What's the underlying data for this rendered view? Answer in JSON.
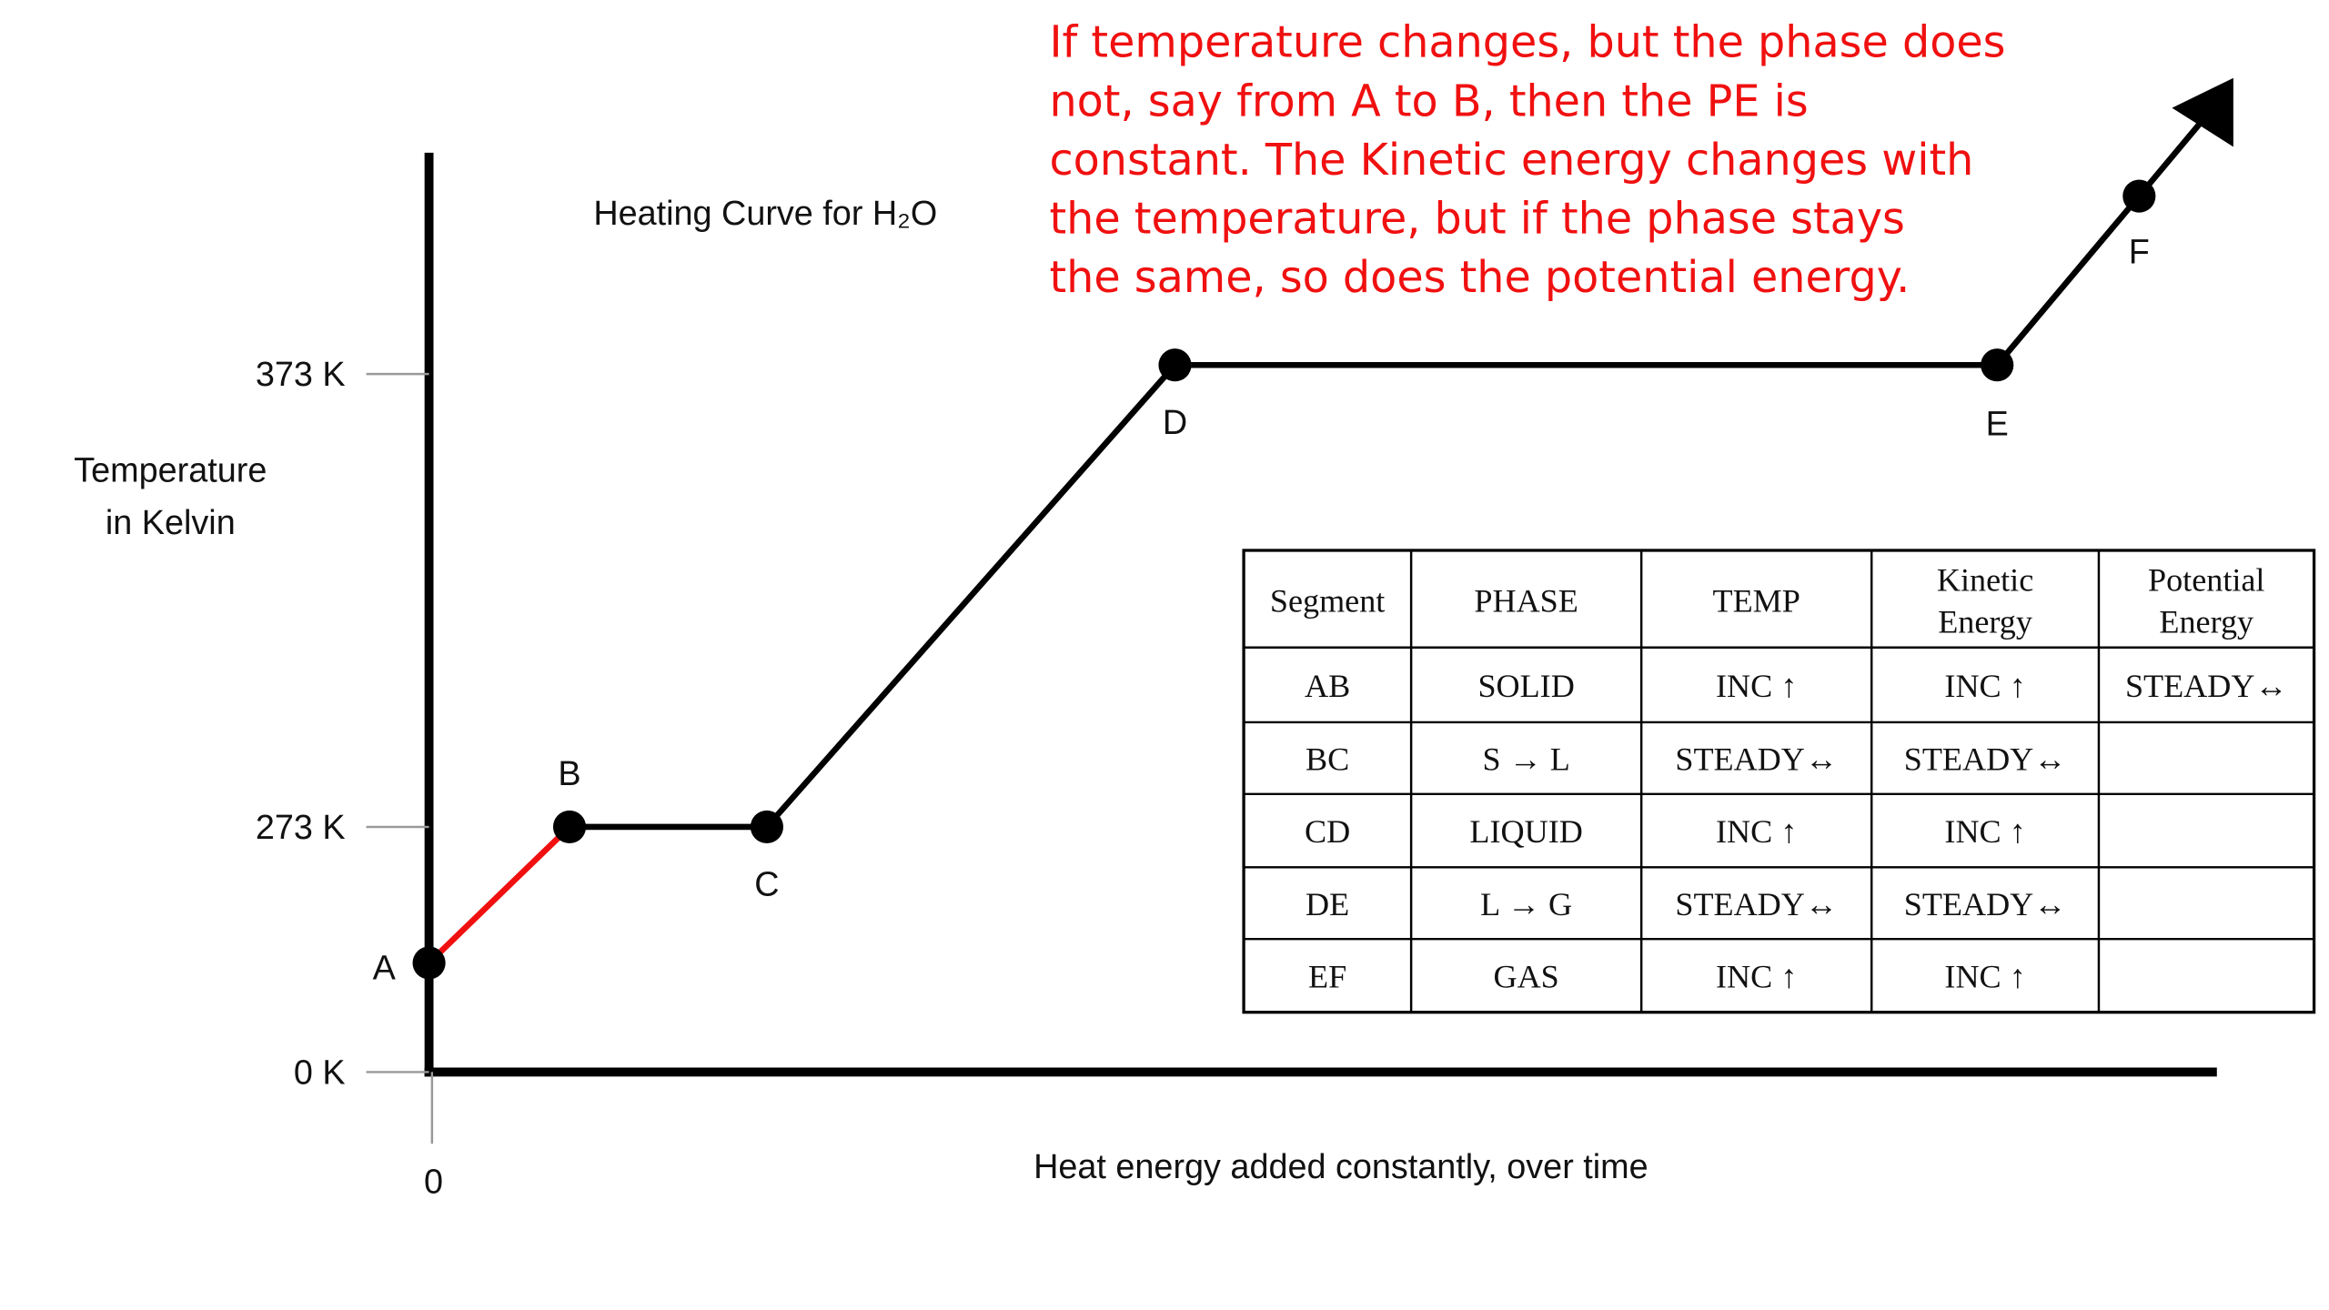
{
  "title": "Heating Curve for H₂O",
  "y_axis_label": [
    "Temperature",
    "in Kelvin"
  ],
  "x_axis_label": "Heat energy added constantly, over time",
  "y_ticks": [
    "373 K",
    "273 K",
    "0 K"
  ],
  "x_ticks": [
    "0"
  ],
  "points": [
    "A",
    "B",
    "C",
    "D",
    "E",
    "F"
  ],
  "annotation": [
    "If temperature changes, but the phase does",
    "not, say from A to B, then the PE is",
    "constant.  The Kinetic energy changes with",
    "the temperature, but if the phase stays",
    "the same, so does the potential energy."
  ],
  "table": {
    "header": [
      "Segment",
      "PHASE",
      "TEMP",
      "Kinetic Energy",
      "Potential Energy"
    ],
    "rows": [
      [
        "AB",
        "SOLID",
        "INC ↑",
        "INC ↑",
        "STEADY↔"
      ],
      [
        "BC",
        "S → L",
        "STEADY↔",
        "STEADY↔"
      ],
      [
        "CD",
        "LIQUID",
        "INC ↑",
        "INC ↑"
      ],
      [
        "DE",
        "L → G",
        "STEADY↔",
        "STEADY↔"
      ],
      [
        "EF",
        "GAS",
        "INC ↑",
        "INC ↑"
      ]
    ]
  }
}
